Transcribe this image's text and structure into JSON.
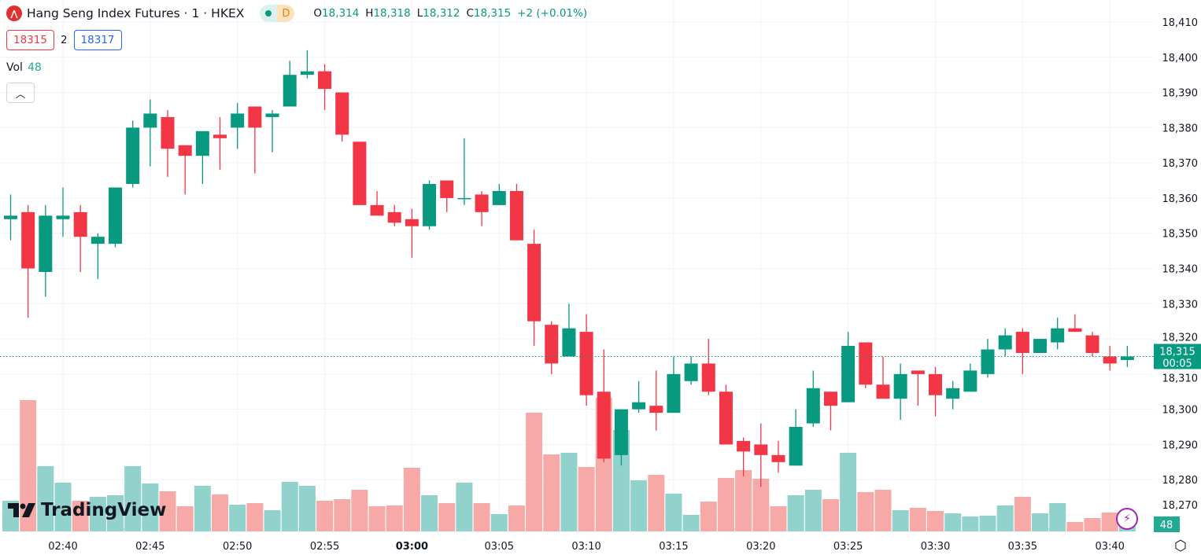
{
  "header": {
    "symbol_title": "Hang Seng Index Futures · 1 · HKEX",
    "logo_icon": "hsi-logo-icon",
    "market_status_icon": "market-open-dot-icon",
    "delay_badge": "D",
    "ohlc": {
      "o_label": "O",
      "o": "18,314",
      "h_label": "H",
      "h": "18,318",
      "l_label": "L",
      "l": "18,312",
      "c_label": "C",
      "c": "18,315",
      "change": "+2 (+0.01%)"
    },
    "bid": "18315",
    "spread": "2",
    "ask": "18317"
  },
  "volume_legend": {
    "label": "Vol",
    "value": "48"
  },
  "collapse_icon": "chevron-up-icon",
  "branding": {
    "text": "TradingView"
  },
  "price_axis": {
    "labels": [
      "18,410",
      "18,400",
      "18,390",
      "18,380",
      "18,370",
      "18,360",
      "18,350",
      "18,340",
      "18,330",
      "18,320",
      "18,310",
      "18,300",
      "18,290",
      "18,280",
      "18,270"
    ]
  },
  "last_price": {
    "price": "18,315",
    "countdown": "00:05",
    "volume": "48"
  },
  "time_axis": {
    "labels": [
      "02:40",
      "02:45",
      "02:50",
      "02:55",
      "03:00",
      "03:05",
      "03:10",
      "03:15",
      "03:20",
      "03:25",
      "03:30",
      "03:35",
      "03:40"
    ],
    "bold": "03:00"
  },
  "colors": {
    "up": "#089981",
    "down": "#f23645",
    "vol_up": "#92d2cc",
    "vol_down": "#f7a9a7",
    "grid": "#f0f3fa"
  },
  "chart_data": {
    "type": "candlestick",
    "title": "Hang Seng Index Futures · 1 · HKEX",
    "ylim": [
      18270,
      18410
    ],
    "grid": true,
    "columns": [
      "time",
      "open",
      "high",
      "low",
      "close",
      "volume"
    ],
    "candles": [
      [
        "02:37",
        18354,
        18361,
        18348,
        18355,
        156
      ],
      [
        "02:38",
        18356,
        18358,
        18326,
        18340,
        668
      ],
      [
        "02:39",
        18339,
        18358,
        18332,
        18355,
        332
      ],
      [
        "02:40",
        18354,
        18363,
        18349,
        18355,
        248
      ],
      [
        "02:41",
        18356,
        18358,
        18339,
        18349,
        156
      ],
      [
        "02:42",
        18347,
        18350,
        18337,
        18349,
        176
      ],
      [
        "02:43",
        18347,
        18363,
        18346,
        18363,
        184
      ],
      [
        "02:44",
        18364,
        18382,
        18363,
        18380,
        332
      ],
      [
        "02:45",
        18380,
        18388,
        18369,
        18384,
        244
      ],
      [
        "02:46",
        18383,
        18385,
        18366,
        18374,
        204
      ],
      [
        "02:47",
        18375,
        18375,
        18361,
        18372,
        128
      ],
      [
        "02:48",
        18372,
        18379,
        18364,
        18379,
        232
      ],
      [
        "02:49",
        18378,
        18383,
        18368,
        18377,
        188
      ],
      [
        "02:50",
        18380,
        18387,
        18374,
        18384,
        136
      ],
      [
        "02:51",
        18386,
        18386,
        18367,
        18380,
        144
      ],
      [
        "02:52",
        18383,
        18385,
        18373,
        18384,
        108
      ],
      [
        "02:53",
        18386,
        18399,
        18386,
        18395,
        252
      ],
      [
        "02:54",
        18395,
        18402,
        18394,
        18396,
        232
      ],
      [
        "02:55",
        18396,
        18398,
        18385,
        18391,
        156
      ],
      [
        "02:56",
        18390,
        18390,
        18376,
        18378,
        164
      ],
      [
        "02:57",
        18376,
        18376,
        18358,
        18358,
        212
      ],
      [
        "02:58",
        18358,
        18362,
        18355,
        18355,
        128
      ],
      [
        "02:59",
        18356,
        18358,
        18352,
        18353,
        132
      ],
      [
        "03:00",
        18354,
        18357,
        18343,
        18352,
        324
      ],
      [
        "03:01",
        18352,
        18365,
        18351,
        18364,
        184
      ],
      [
        "03:02",
        18365,
        18365,
        18356,
        18360,
        144
      ],
      [
        "03:03",
        18360,
        18377,
        18358,
        18360,
        248
      ],
      [
        "03:04",
        18361,
        18362,
        18352,
        18356,
        144
      ],
      [
        "03:05",
        18358,
        18364,
        18358,
        18362,
        88
      ],
      [
        "03:06",
        18362,
        18364,
        18348,
        18348,
        132
      ],
      [
        "03:07",
        18347,
        18351,
        18318,
        18325,
        604
      ],
      [
        "03:08",
        18324,
        18325,
        18310,
        18313,
        392
      ],
      [
        "03:09",
        18315,
        18330,
        18315,
        18323,
        400
      ],
      [
        "03:10",
        18322,
        18327,
        18301,
        18304,
        328
      ],
      [
        "03:11",
        18305,
        18317,
        18285,
        18286,
        680
      ],
      [
        "03:12",
        18287,
        18300,
        18284,
        18300,
        516
      ],
      [
        "03:13",
        18300,
        18308,
        18299,
        18302,
        260
      ],
      [
        "03:14",
        18301,
        18311,
        18294,
        18299,
        288
      ],
      [
        "03:15",
        18299,
        18315,
        18299,
        18310,
        192
      ],
      [
        "03:16",
        18308,
        18315,
        18307,
        18313,
        84
      ],
      [
        "03:17",
        18313,
        18320,
        18304,
        18305,
        152
      ],
      [
        "03:18",
        18305,
        18307,
        18290,
        18290,
        272
      ],
      [
        "03:19",
        18291,
        18292,
        18281,
        18288,
        312
      ],
      [
        "03:20",
        18290,
        18296,
        18278,
        18287,
        268
      ],
      [
        "03:21",
        18287,
        18291,
        18282,
        18285,
        128
      ],
      [
        "03:22",
        18284,
        18300,
        18284,
        18295,
        184
      ],
      [
        "03:23",
        18296,
        18311,
        18295,
        18306,
        212
      ],
      [
        "03:24",
        18305,
        18305,
        18294,
        18301,
        164
      ],
      [
        "03:25",
        18302,
        18322,
        18302,
        18318,
        400
      ],
      [
        "03:26",
        18319,
        18319,
        18306,
        18307,
        200
      ],
      [
        "03:27",
        18307,
        18315,
        18303,
        18303,
        212
      ],
      [
        "03:28",
        18303,
        18313,
        18297,
        18310,
        108
      ],
      [
        "03:29",
        18311,
        18311,
        18301,
        18310,
        120
      ],
      [
        "03:30",
        18310,
        18312,
        18298,
        18304,
        104
      ],
      [
        "03:31",
        18303,
        18308,
        18300,
        18306,
        92
      ],
      [
        "03:32",
        18305,
        18313,
        18305,
        18311,
        76
      ],
      [
        "03:33",
        18310,
        18320,
        18309,
        18317,
        80
      ],
      [
        "03:34",
        18317,
        18323,
        18315,
        18321,
        132
      ],
      [
        "03:35",
        18322,
        18323,
        18310,
        18316,
        176
      ],
      [
        "03:36",
        18316,
        18320,
        18316,
        18320,
        92
      ],
      [
        "03:37",
        18319,
        18326,
        18317,
        18323,
        144
      ],
      [
        "03:38",
        18323,
        18327,
        18322,
        18322,
        48
      ],
      [
        "03:39",
        18321,
        18322,
        18315,
        18316,
        68
      ],
      [
        "03:40",
        18315,
        18318,
        18311,
        18313,
        96
      ],
      [
        "03:41",
        18314,
        18318,
        18312,
        18315,
        48
      ]
    ]
  }
}
